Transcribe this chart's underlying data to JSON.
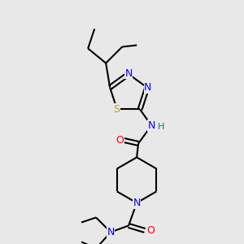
{
  "bg_color": "#e8e8e8",
  "bond_color": "#000000",
  "atom_colors": {
    "N": "#0000ff",
    "O": "#ff0000",
    "S": "#bbaa00",
    "H": "#008080",
    "C": "#000000"
  },
  "figsize": [
    3.0,
    3.0
  ],
  "dpi": 100
}
